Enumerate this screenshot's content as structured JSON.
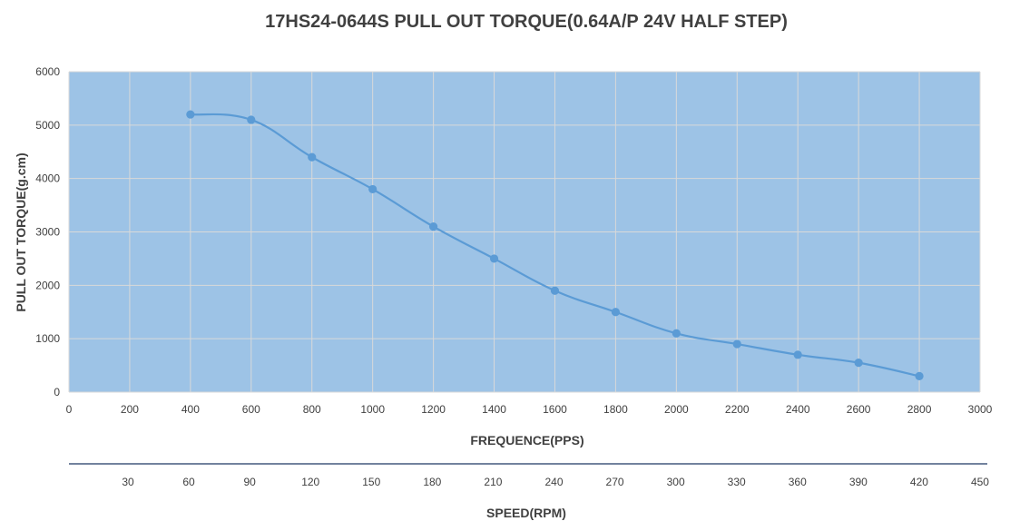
{
  "chart_data": {
    "type": "line",
    "title": "17HS24-0644S PULL OUT TORQUE(0.64A/P 24V HALF STEP)",
    "xlabel": "FREQUENCE(PPS)",
    "ylabel": "PULL OUT TORQUE(g.cm)",
    "secondary_xlabel": "SPEED(RPM)",
    "xlim": [
      0,
      3000
    ],
    "ylim": [
      0,
      6000
    ],
    "x_ticks": [
      "0",
      "200",
      "400",
      "600",
      "800",
      "1000",
      "1200",
      "1400",
      "1600",
      "1800",
      "2000",
      "2200",
      "2400",
      "2600",
      "2800",
      "3000"
    ],
    "y_ticks": [
      "0",
      "1000",
      "2000",
      "3000",
      "4000",
      "5000",
      "6000"
    ],
    "secondary_x_ticks": [
      "30",
      "60",
      "90",
      "120",
      "150",
      "180",
      "210",
      "240",
      "270",
      "300",
      "330",
      "360",
      "390",
      "420",
      "450"
    ],
    "grid": true,
    "plot_background": "#9dc3e6",
    "line_color": "#5b9bd5",
    "series": [
      {
        "x": [
          400,
          600,
          800,
          1000,
          1200,
          1400,
          1600,
          1800,
          2000,
          2200,
          2400,
          2600,
          2800
        ],
        "values": [
          5200,
          5100,
          4400,
          3800,
          3100,
          2500,
          1900,
          1500,
          1100,
          900,
          700,
          550,
          300
        ]
      }
    ]
  }
}
